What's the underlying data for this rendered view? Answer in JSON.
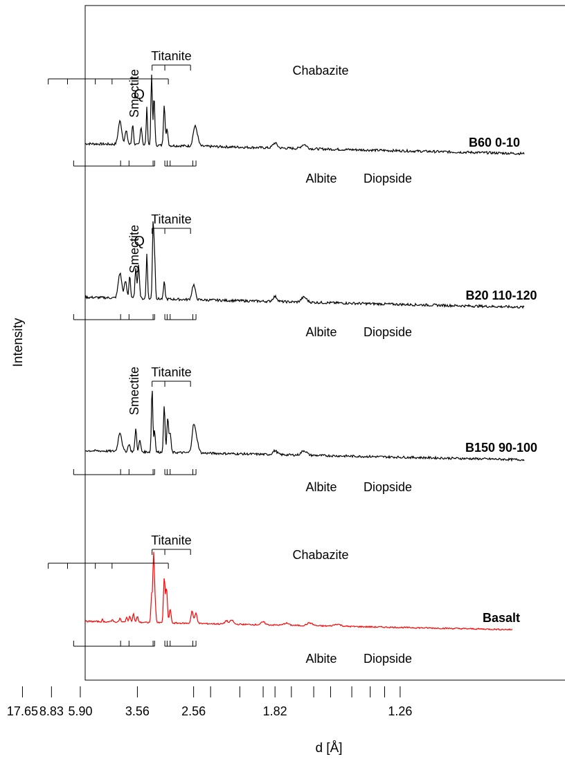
{
  "chart_data": {
    "type": "line",
    "xlabel": "d [Å]",
    "ylabel": "Intensity",
    "x_scale": "reciprocal",
    "x_ticks": [
      {
        "d": 17.65,
        "label": "17.65"
      },
      {
        "d": 8.83,
        "label": "8.83"
      },
      {
        "d": 5.9,
        "label": "5.90"
      },
      {
        "d": 3.56,
        "label": "3.56"
      },
      {
        "d": 2.56,
        "label": "2.56"
      },
      {
        "d": 1.82,
        "label": "1.82"
      },
      {
        "d": 1.26,
        "label": "1.26"
      }
    ],
    "minor_ticks_d": [
      2.36,
      2.08,
      1.9,
      1.72,
      1.6,
      1.52,
      1.43,
      1.36,
      1.31
    ],
    "colors": {
      "sample": "#000000",
      "basalt": "#ff0000"
    },
    "series": [
      {
        "name": "B60 0-10",
        "color": "#000000",
        "baseline_label": "Smectite",
        "peaks": [
          {
            "d": 15.0,
            "h": 0.22,
            "w": 0.6
          },
          {
            "d": 8.5,
            "h": 0.12,
            "w": 0.08
          },
          {
            "d": 6.2,
            "h": 0.03,
            "w": 0.05
          },
          {
            "d": 4.05,
            "h": 0.28,
            "w": 0.08
          },
          {
            "d": 3.86,
            "h": 0.16,
            "w": 0.05
          },
          {
            "d": 3.68,
            "h": 0.25,
            "w": 0.03
          },
          {
            "d": 3.47,
            "h": 0.22,
            "w": 0.03
          },
          {
            "d": 3.34,
            "h": 0.45,
            "w": 0.02
          },
          {
            "d": 3.24,
            "h": 0.85,
            "w": 0.02
          },
          {
            "d": 3.19,
            "h": 0.6,
            "w": 0.02
          },
          {
            "d": 3.0,
            "h": 0.5,
            "w": 0.02
          },
          {
            "d": 2.95,
            "h": 0.2,
            "w": 0.02
          },
          {
            "d": 2.55,
            "h": 0.18,
            "w": 0.03
          },
          {
            "d": 2.52,
            "h": 0.12,
            "w": 0.03
          },
          {
            "d": 1.82,
            "h": 0.06,
            "w": 0.02
          },
          {
            "d": 1.65,
            "h": 0.05,
            "w": 0.02
          }
        ],
        "annotations": [
          {
            "label": "Q",
            "d": 3.34
          },
          {
            "label": "Chabazite",
            "ticks_d": [
              9.35,
              6.92,
              5.03,
              4.32,
              2.93
            ]
          },
          {
            "label": "Titanite",
            "ticks_d": [
              3.23,
              2.99,
              2.6
            ]
          },
          {
            "label": "Albite",
            "ticks_d": [
              6.39,
              4.03,
              3.78,
              3.21,
              3.18
            ]
          },
          {
            "label": "Diopside",
            "ticks_d": [
              2.99,
              2.95,
              2.9,
              2.57,
              2.53
            ]
          }
        ]
      },
      {
        "name": "B20 110-120",
        "color": "#000000",
        "baseline_label": "Smectite",
        "peaks": [
          {
            "d": 15.0,
            "h": 0.2,
            "w": 0.6
          },
          {
            "d": 6.3,
            "h": 0.02,
            "w": 0.05
          },
          {
            "d": 4.05,
            "h": 0.3,
            "w": 0.08
          },
          {
            "d": 3.88,
            "h": 0.2,
            "w": 0.05
          },
          {
            "d": 3.76,
            "h": 0.28,
            "w": 0.03
          },
          {
            "d": 3.6,
            "h": 0.35,
            "w": 0.03
          },
          {
            "d": 3.53,
            "h": 0.4,
            "w": 0.03
          },
          {
            "d": 3.34,
            "h": 0.55,
            "w": 0.02
          },
          {
            "d": 3.21,
            "h": 0.9,
            "w": 0.02
          },
          {
            "d": 3.18,
            "h": 0.5,
            "w": 0.02
          },
          {
            "d": 3.0,
            "h": 0.2,
            "w": 0.02
          },
          {
            "d": 2.56,
            "h": 0.18,
            "w": 0.03
          },
          {
            "d": 1.82,
            "h": 0.06,
            "w": 0.02
          },
          {
            "d": 1.65,
            "h": 0.06,
            "w": 0.02
          }
        ],
        "annotations": [
          {
            "label": "Q",
            "d": 3.34
          },
          {
            "label": "Titanite",
            "ticks_d": [
              3.23,
              2.99,
              2.6
            ]
          },
          {
            "label": "Albite",
            "ticks_d": [
              6.39,
              4.03,
              3.78,
              3.21,
              3.18
            ]
          },
          {
            "label": "Diopside",
            "ticks_d": [
              2.99,
              2.95,
              2.9,
              2.57,
              2.53
            ]
          }
        ]
      },
      {
        "name": "B150 90-100",
        "color": "#000000",
        "baseline_label": "Smectite",
        "peaks": [
          {
            "d": 14.5,
            "h": 0.5,
            "w": 0.7
          },
          {
            "d": 6.4,
            "h": 0.05,
            "w": 0.05
          },
          {
            "d": 4.05,
            "h": 0.25,
            "w": 0.08
          },
          {
            "d": 3.78,
            "h": 0.1,
            "w": 0.04
          },
          {
            "d": 3.6,
            "h": 0.3,
            "w": 0.03
          },
          {
            "d": 3.5,
            "h": 0.15,
            "w": 0.03
          },
          {
            "d": 3.23,
            "h": 0.85,
            "w": 0.02
          },
          {
            "d": 3.18,
            "h": 0.3,
            "w": 0.02
          },
          {
            "d": 3.0,
            "h": 0.6,
            "w": 0.02
          },
          {
            "d": 2.94,
            "h": 0.45,
            "w": 0.02
          },
          {
            "d": 2.9,
            "h": 0.25,
            "w": 0.02
          },
          {
            "d": 2.56,
            "h": 0.35,
            "w": 0.03
          },
          {
            "d": 2.52,
            "h": 0.15,
            "w": 0.03
          },
          {
            "d": 1.82,
            "h": 0.05,
            "w": 0.02
          },
          {
            "d": 1.65,
            "h": 0.06,
            "w": 0.02
          }
        ],
        "annotations": [
          {
            "label": "Titanite",
            "ticks_d": [
              3.23,
              2.99,
              2.6
            ]
          },
          {
            "label": "Albite",
            "ticks_d": [
              6.39,
              4.03,
              3.78,
              3.21,
              3.18
            ]
          },
          {
            "label": "Diopside",
            "ticks_d": [
              2.99,
              2.95,
              2.9,
              2.57,
              2.53
            ]
          }
        ]
      },
      {
        "name": "Basalt",
        "color": "#ff0000",
        "peaks": [
          {
            "d": 14.0,
            "h": 0.03,
            "w": 0.6
          },
          {
            "d": 9.0,
            "h": 0.08,
            "w": 0.05
          },
          {
            "d": 6.9,
            "h": 0.04,
            "w": 0.06
          },
          {
            "d": 6.4,
            "h": 0.03,
            "w": 0.05
          },
          {
            "d": 4.7,
            "h": 0.03,
            "w": 0.03
          },
          {
            "d": 4.3,
            "h": 0.04,
            "w": 0.03
          },
          {
            "d": 4.05,
            "h": 0.06,
            "w": 0.03
          },
          {
            "d": 3.85,
            "h": 0.07,
            "w": 0.03
          },
          {
            "d": 3.76,
            "h": 0.1,
            "w": 0.03
          },
          {
            "d": 3.66,
            "h": 0.12,
            "w": 0.03
          },
          {
            "d": 3.56,
            "h": 0.08,
            "w": 0.03
          },
          {
            "d": 3.24,
            "h": 0.4,
            "w": 0.02
          },
          {
            "d": 3.2,
            "h": 1.0,
            "w": 0.02
          },
          {
            "d": 3.17,
            "h": 0.3,
            "w": 0.02
          },
          {
            "d": 3.0,
            "h": 0.65,
            "w": 0.02
          },
          {
            "d": 2.96,
            "h": 0.5,
            "w": 0.02
          },
          {
            "d": 2.9,
            "h": 0.2,
            "w": 0.02
          },
          {
            "d": 2.58,
            "h": 0.18,
            "w": 0.02
          },
          {
            "d": 2.53,
            "h": 0.15,
            "w": 0.02
          },
          {
            "d": 2.2,
            "h": 0.05,
            "w": 0.02
          },
          {
            "d": 2.15,
            "h": 0.06,
            "w": 0.02
          },
          {
            "d": 1.9,
            "h": 0.04,
            "w": 0.02
          },
          {
            "d": 1.75,
            "h": 0.03,
            "w": 0.02
          },
          {
            "d": 1.62,
            "h": 0.04,
            "w": 0.02
          },
          {
            "d": 1.49,
            "h": 0.03,
            "w": 0.02
          }
        ],
        "annotations": [
          {
            "label": "Chabazite",
            "ticks_d": [
              9.35,
              6.92,
              5.03,
              4.32,
              2.93
            ]
          },
          {
            "label": "Titanite",
            "ticks_d": [
              3.23,
              2.99,
              2.6
            ]
          },
          {
            "label": "Albite",
            "ticks_d": [
              6.39,
              4.03,
              3.78,
              3.21,
              3.18
            ]
          },
          {
            "label": "Diopside",
            "ticks_d": [
              2.99,
              2.95,
              2.9,
              2.57,
              2.53
            ]
          }
        ]
      }
    ]
  }
}
